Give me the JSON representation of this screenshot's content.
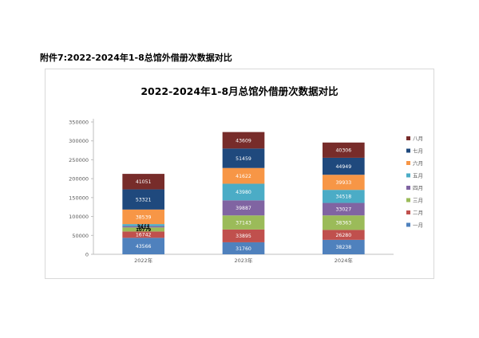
{
  "document": {
    "heading": "附件7:2022-2024年1-8总馆外借册次数据对比"
  },
  "chart_data": {
    "type": "bar",
    "stacked": true,
    "title": "2022-2024年1-8月总馆外借册次数据对比",
    "xlabel": "",
    "ylabel": "",
    "categories": [
      "2022年",
      "2023年",
      "2024年"
    ],
    "ylim": [
      0,
      350000
    ],
    "yticks": [
      0,
      50000,
      100000,
      150000,
      200000,
      250000,
      300000,
      350000
    ],
    "grid": false,
    "legend_position": "right",
    "series": [
      {
        "name": "一月",
        "color": "#4f81bd",
        "values": [
          43566,
          31760,
          38238
        ]
      },
      {
        "name": "二月",
        "color": "#c0504d",
        "values": [
          16742,
          33895,
          26280
        ]
      },
      {
        "name": "三月",
        "color": "#9bbb59",
        "values": [
          10779,
          37143,
          38363
        ]
      },
      {
        "name": "四月",
        "color": "#8064a2",
        "values": [
          3473,
          39887,
          33027
        ]
      },
      {
        "name": "五月",
        "color": "#4bacc6",
        "values": [
          5273,
          43980,
          34518
        ]
      },
      {
        "name": "六月",
        "color": "#f79646",
        "values": [
          38539,
          41622,
          39933
        ]
      },
      {
        "name": "七月",
        "color": "#1f497d",
        "values": [
          53321,
          51459,
          44949
        ]
      },
      {
        "name": "八月",
        "color": "#772c2a",
        "values": [
          41051,
          43609,
          40306
        ]
      }
    ]
  }
}
